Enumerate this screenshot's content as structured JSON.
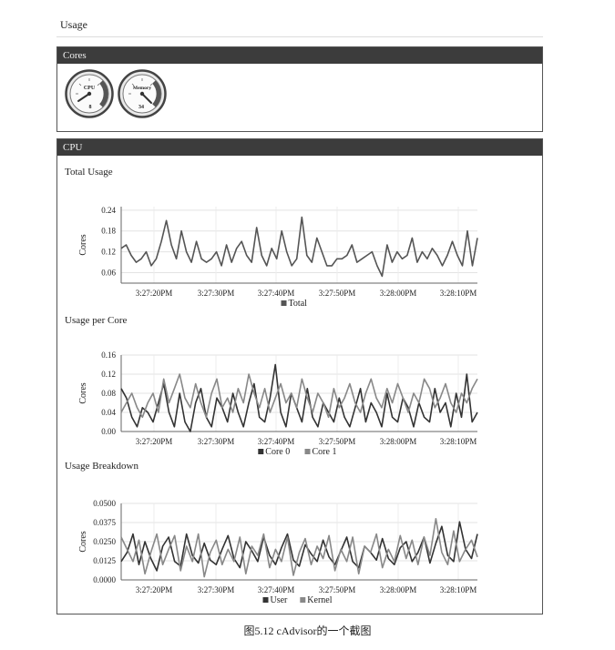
{
  "usage": {
    "title": "Usage"
  },
  "cores_panel": {
    "title": "Cores",
    "gauges": [
      {
        "label": "CPU",
        "value_label": "8",
        "icon": "cpu-gauge-icon"
      },
      {
        "label": "Memory",
        "value_label": "34",
        "icon": "memory-gauge-icon"
      }
    ]
  },
  "cpu_panel": {
    "title": "CPU"
  },
  "x_ticks": [
    "3:27:20PM",
    "3:27:30PM",
    "3:27:40PM",
    "3:27:50PM",
    "3:28:00PM",
    "3:28:10PM"
  ],
  "chart_data": [
    {
      "type": "line",
      "title": "Total Usage",
      "ylabel": "Cores",
      "xlabel": "",
      "ylim": [
        0.03,
        0.25
      ],
      "yticks": [
        "0.24",
        "0.18",
        "0.12",
        "0.06"
      ],
      "ytick_values": [
        0.24,
        0.18,
        0.12,
        0.06
      ],
      "grid": true,
      "legend": "bottom",
      "series": [
        {
          "name": "Total",
          "color": "#555555",
          "values": [
            0.13,
            0.14,
            0.11,
            0.09,
            0.1,
            0.12,
            0.08,
            0.1,
            0.15,
            0.21,
            0.14,
            0.1,
            0.18,
            0.12,
            0.09,
            0.15,
            0.1,
            0.09,
            0.1,
            0.12,
            0.08,
            0.14,
            0.09,
            0.13,
            0.15,
            0.11,
            0.09,
            0.19,
            0.11,
            0.08,
            0.13,
            0.1,
            0.18,
            0.12,
            0.08,
            0.1,
            0.22,
            0.11,
            0.09,
            0.16,
            0.12,
            0.08,
            0.08,
            0.1,
            0.1,
            0.11,
            0.14,
            0.09,
            0.1,
            0.11,
            0.12,
            0.08,
            0.05,
            0.14,
            0.09,
            0.12,
            0.1,
            0.11,
            0.16,
            0.09,
            0.12,
            0.1,
            0.13,
            0.11,
            0.08,
            0.11,
            0.15,
            0.11,
            0.08,
            0.18,
            0.08,
            0.16
          ]
        }
      ]
    },
    {
      "type": "line",
      "title": "Usage per Core",
      "ylabel": "Cores",
      "xlabel": "",
      "ylim": [
        0.0,
        0.16
      ],
      "yticks": [
        "0.16",
        "0.12",
        "0.08",
        "0.04",
        "0.00"
      ],
      "ytick_values": [
        0.16,
        0.12,
        0.08,
        0.04,
        0.0
      ],
      "grid": true,
      "legend": "bottom",
      "series": [
        {
          "name": "Core 0",
          "color": "#333333",
          "values": [
            0.09,
            0.07,
            0.03,
            0.01,
            0.05,
            0.04,
            0.02,
            0.06,
            0.1,
            0.04,
            0.01,
            0.08,
            0.02,
            0.0,
            0.06,
            0.09,
            0.03,
            0.01,
            0.07,
            0.05,
            0.02,
            0.08,
            0.04,
            0.01,
            0.06,
            0.1,
            0.03,
            0.02,
            0.07,
            0.14,
            0.04,
            0.01,
            0.08,
            0.05,
            0.02,
            0.09,
            0.03,
            0.01,
            0.06,
            0.04,
            0.02,
            0.07,
            0.03,
            0.01,
            0.05,
            0.09,
            0.02,
            0.06,
            0.04,
            0.01,
            0.08,
            0.03,
            0.02,
            0.07,
            0.05,
            0.01,
            0.06,
            0.03,
            0.02,
            0.09,
            0.04,
            0.06,
            0.01,
            0.08,
            0.03,
            0.12,
            0.02,
            0.04
          ]
        },
        {
          "name": "Core 1",
          "color": "#888888",
          "values": [
            0.04,
            0.06,
            0.08,
            0.05,
            0.03,
            0.06,
            0.08,
            0.04,
            0.11,
            0.06,
            0.09,
            0.12,
            0.07,
            0.05,
            0.1,
            0.06,
            0.03,
            0.08,
            0.11,
            0.05,
            0.07,
            0.04,
            0.09,
            0.06,
            0.12,
            0.08,
            0.05,
            0.09,
            0.04,
            0.07,
            0.1,
            0.06,
            0.08,
            0.05,
            0.11,
            0.07,
            0.04,
            0.08,
            0.06,
            0.03,
            0.09,
            0.05,
            0.07,
            0.1,
            0.06,
            0.04,
            0.08,
            0.11,
            0.07,
            0.05,
            0.09,
            0.06,
            0.1,
            0.07,
            0.04,
            0.08,
            0.06,
            0.11,
            0.09,
            0.05,
            0.07,
            0.1,
            0.06,
            0.04,
            0.08,
            0.06,
            0.09,
            0.11
          ]
        }
      ]
    },
    {
      "type": "line",
      "title": "Usage Breakdown",
      "ylabel": "Cores",
      "xlabel": "",
      "ylim": [
        0.0,
        0.05
      ],
      "yticks": [
        "0.0500",
        "0.0375",
        "0.0250",
        "0.0125",
        "0.0000"
      ],
      "ytick_values": [
        0.05,
        0.0375,
        0.025,
        0.0125,
        0.0
      ],
      "grid": true,
      "legend": "bottom",
      "series": [
        {
          "name": "User",
          "color": "#333333",
          "values": [
            0.012,
            0.018,
            0.03,
            0.01,
            0.025,
            0.014,
            0.006,
            0.022,
            0.028,
            0.012,
            0.009,
            0.03,
            0.016,
            0.011,
            0.024,
            0.013,
            0.01,
            0.02,
            0.029,
            0.014,
            0.008,
            0.025,
            0.019,
            0.012,
            0.028,
            0.016,
            0.01,
            0.021,
            0.03,
            0.013,
            0.009,
            0.023,
            0.017,
            0.012,
            0.026,
            0.015,
            0.01,
            0.019,
            0.028,
            0.012,
            0.008,
            0.022,
            0.018,
            0.013,
            0.027,
            0.014,
            0.01,
            0.021,
            0.025,
            0.012,
            0.018,
            0.028,
            0.011,
            0.024,
            0.035,
            0.016,
            0.012,
            0.038,
            0.02,
            0.014,
            0.03
          ]
        },
        {
          "name": "Kernel",
          "color": "#888888",
          "values": [
            0.028,
            0.02,
            0.012,
            0.026,
            0.004,
            0.018,
            0.03,
            0.01,
            0.02,
            0.029,
            0.006,
            0.022,
            0.012,
            0.03,
            0.002,
            0.018,
            0.026,
            0.01,
            0.02,
            0.012,
            0.028,
            0.004,
            0.022,
            0.016,
            0.03,
            0.008,
            0.02,
            0.012,
            0.028,
            0.003,
            0.018,
            0.027,
            0.01,
            0.022,
            0.014,
            0.029,
            0.006,
            0.02,
            0.012,
            0.028,
            0.004,
            0.022,
            0.018,
            0.03,
            0.008,
            0.02,
            0.012,
            0.029,
            0.014,
            0.026,
            0.01,
            0.028,
            0.016,
            0.04,
            0.018,
            0.01,
            0.032,
            0.012,
            0.02,
            0.026,
            0.015
          ]
        }
      ]
    }
  ],
  "caption": {
    "text": "图5.12    cAdvisor的一个截图"
  }
}
